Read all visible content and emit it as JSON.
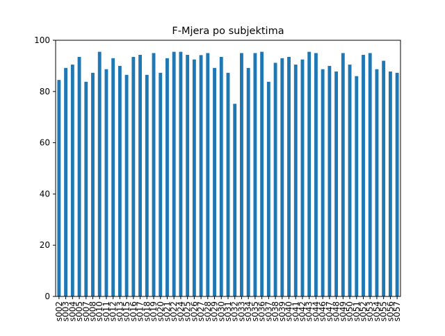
{
  "chart_data": {
    "type": "bar",
    "title": "F-Mjera po subjektima",
    "xlabel": "",
    "ylabel": "",
    "ylim": [
      0,
      100
    ],
    "yticks": [
      0,
      20,
      40,
      60,
      80,
      100
    ],
    "grid": false,
    "legend": "none",
    "bar_color": "#1f77b4",
    "categories": [
      "s002",
      "s003",
      "s004",
      "s005",
      "s007",
      "s008",
      "s010",
      "s011",
      "s012",
      "s013",
      "s015",
      "s016",
      "s017",
      "s018",
      "s019",
      "s020",
      "s021",
      "s022",
      "s024",
      "s025",
      "s026",
      "s027",
      "s028",
      "s029",
      "s030",
      "s031",
      "s032",
      "s033",
      "s034",
      "s035",
      "s036",
      "s037",
      "s038",
      "s039",
      "s040",
      "s041",
      "s042",
      "s043",
      "s044",
      "s046",
      "s047",
      "s048",
      "s049",
      "s050",
      "s051",
      "s052",
      "s053",
      "s054",
      "s055",
      "s056",
      "s057"
    ],
    "values": [
      84.5,
      89.2,
      90.5,
      93.5,
      83.8,
      87.3,
      95.5,
      88.7,
      93.0,
      90.0,
      86.5,
      93.5,
      94.3,
      86.5,
      95.0,
      87.3,
      93.0,
      95.5,
      95.5,
      94.3,
      92.5,
      94.2,
      95.0,
      89.2,
      93.5,
      87.3,
      75.2,
      95.0,
      89.2,
      95.0,
      95.5,
      83.8,
      91.2,
      93.0,
      93.5,
      90.5,
      92.5,
      95.5,
      95.0,
      88.7,
      90.0,
      87.8,
      95.0,
      90.5,
      86.0,
      94.3,
      95.0,
      88.7,
      92.0,
      87.8,
      87.3
    ]
  }
}
